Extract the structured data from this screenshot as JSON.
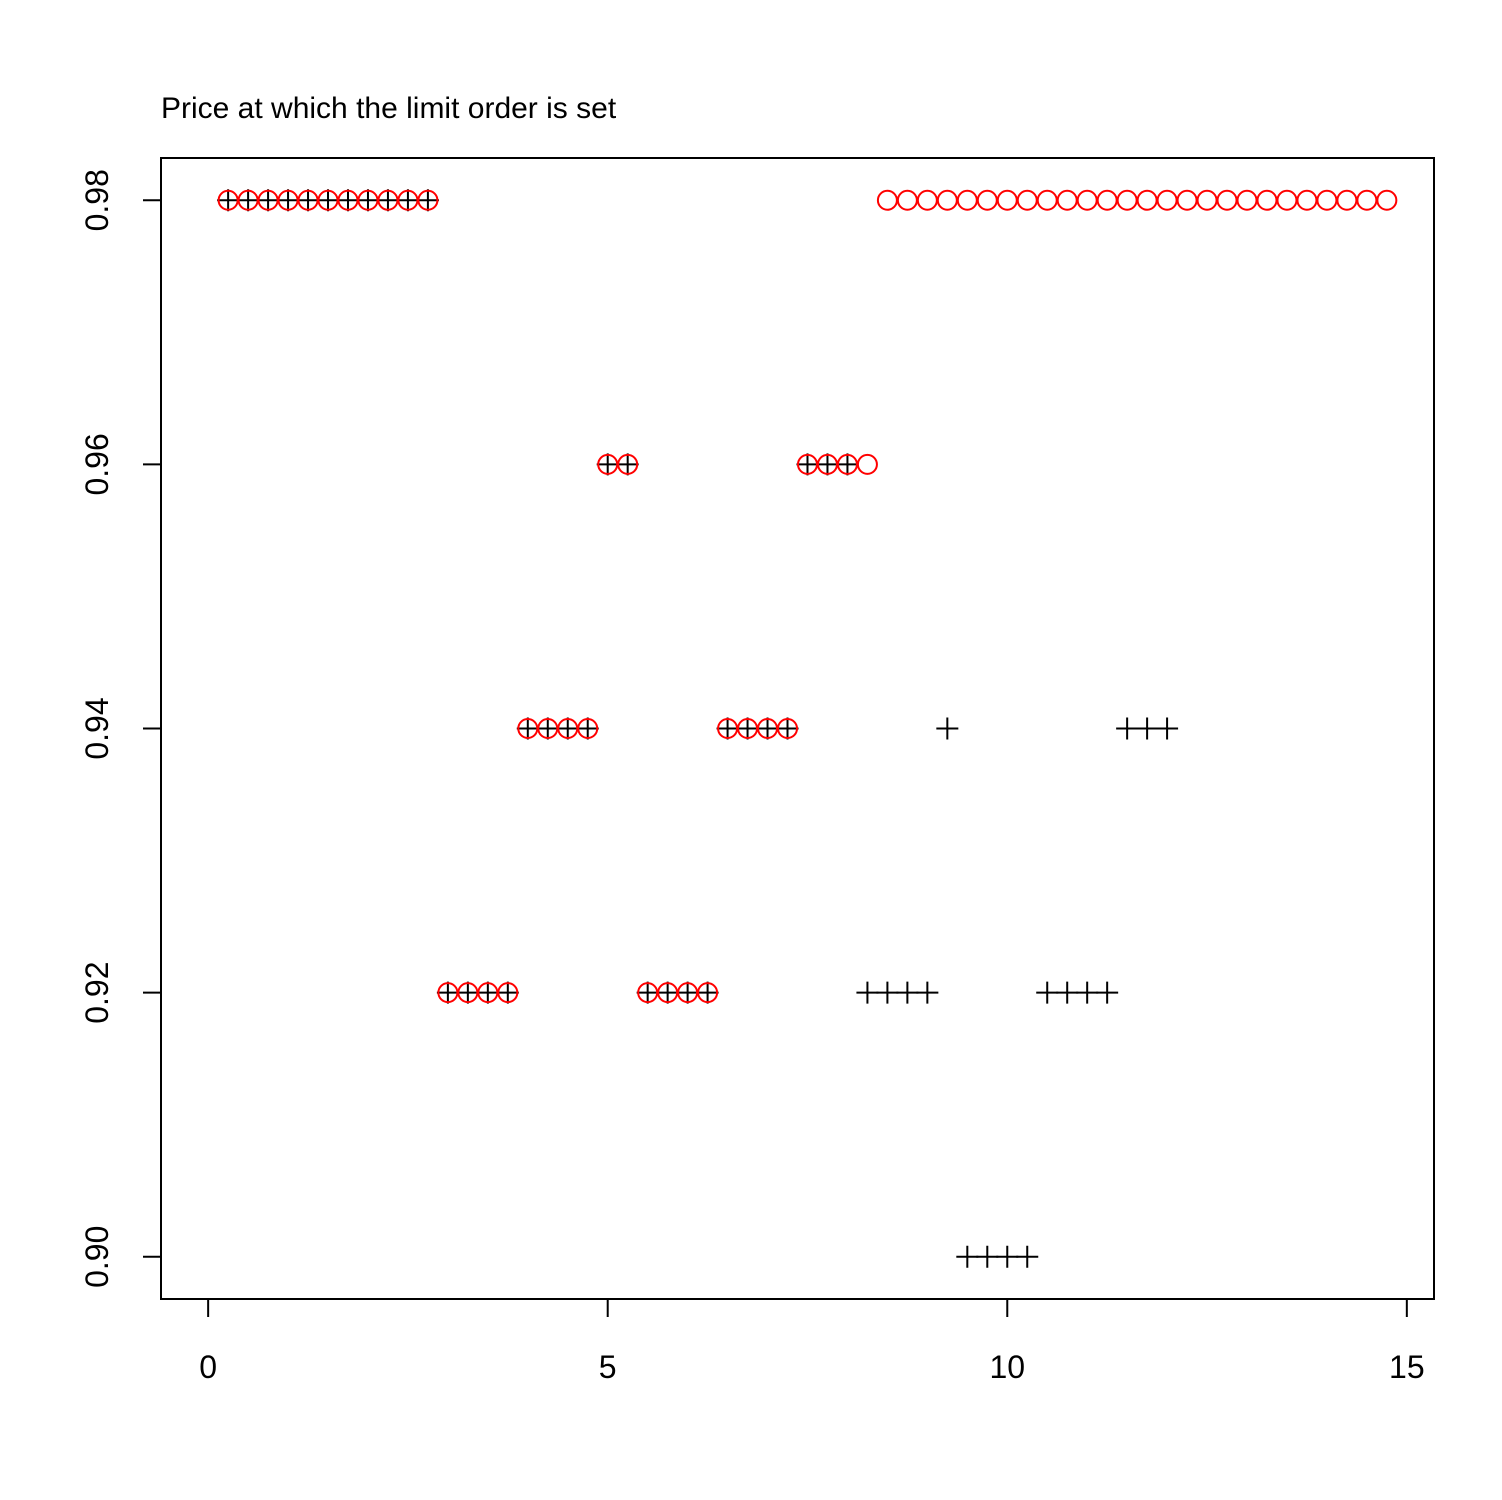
{
  "chart_data": {
    "type": "scatter",
    "title": "Price at which the limit order is set",
    "x": [
      0.25,
      0.5,
      0.75,
      1,
      1.25,
      1.5,
      1.75,
      2,
      2.25,
      2.5,
      2.75,
      3,
      3.25,
      3.5,
      3.75,
      4,
      4.25,
      4.5,
      4.75,
      5,
      5.25,
      5.5,
      5.75,
      6,
      6.25,
      6.5,
      6.75,
      7,
      7.25,
      7.5,
      7.75,
      8,
      8.25,
      8.5,
      8.75,
      9,
      9.25,
      9.5,
      9.75,
      10,
      10.25,
      10.5,
      10.75,
      11,
      11.25,
      11.5,
      11.75,
      12,
      12.25,
      12.5,
      12.75,
      13,
      13.25,
      13.5,
      13.75,
      14,
      14.25,
      14.5,
      14.75
    ],
    "series": [
      {
        "marker": "plus",
        "color": "#000000",
        "values": [
          0.98,
          0.98,
          0.98,
          0.98,
          0.98,
          0.98,
          0.98,
          0.98,
          0.98,
          0.98,
          0.98,
          0.92,
          0.92,
          0.92,
          0.92,
          0.94,
          0.94,
          0.94,
          0.94,
          0.96,
          0.96,
          0.92,
          0.92,
          0.92,
          0.92,
          0.94,
          0.94,
          0.94,
          0.94,
          0.96,
          0.96,
          0.96,
          0.92,
          0.92,
          0.92,
          0.92,
          0.94,
          0.9,
          0.9,
          0.9,
          0.9,
          0.92,
          0.92,
          0.92,
          0.92,
          0.94,
          0.94,
          0.94,
          null,
          null,
          null,
          null,
          null,
          null,
          null,
          null,
          null,
          null,
          null
        ]
      },
      {
        "marker": "circle",
        "color": "#ff0000",
        "values": [
          0.98,
          0.98,
          0.98,
          0.98,
          0.98,
          0.98,
          0.98,
          0.98,
          0.98,
          0.98,
          0.98,
          0.92,
          0.92,
          0.92,
          0.92,
          0.94,
          0.94,
          0.94,
          0.94,
          0.96,
          0.96,
          0.92,
          0.92,
          0.92,
          0.92,
          0.94,
          0.94,
          0.94,
          0.94,
          0.96,
          0.96,
          0.96,
          0.96,
          0.98,
          0.98,
          0.98,
          0.98,
          0.98,
          0.98,
          0.98,
          0.98,
          0.98,
          0.98,
          0.98,
          0.98,
          0.98,
          0.98,
          0.98,
          0.98,
          0.98,
          0.98,
          0.98,
          0.98,
          0.98,
          0.98,
          0.98,
          0.98,
          0.98,
          0.98
        ]
      }
    ],
    "xlim": [
      -0.59,
      15.34
    ],
    "ylim": [
      0.8968,
      0.9832
    ],
    "xticks": [
      0,
      5,
      10,
      15
    ],
    "yticks": [
      {
        "value": 0.9,
        "label": "0.90"
      },
      0.92,
      0.94,
      0.96,
      0.98
    ]
  }
}
